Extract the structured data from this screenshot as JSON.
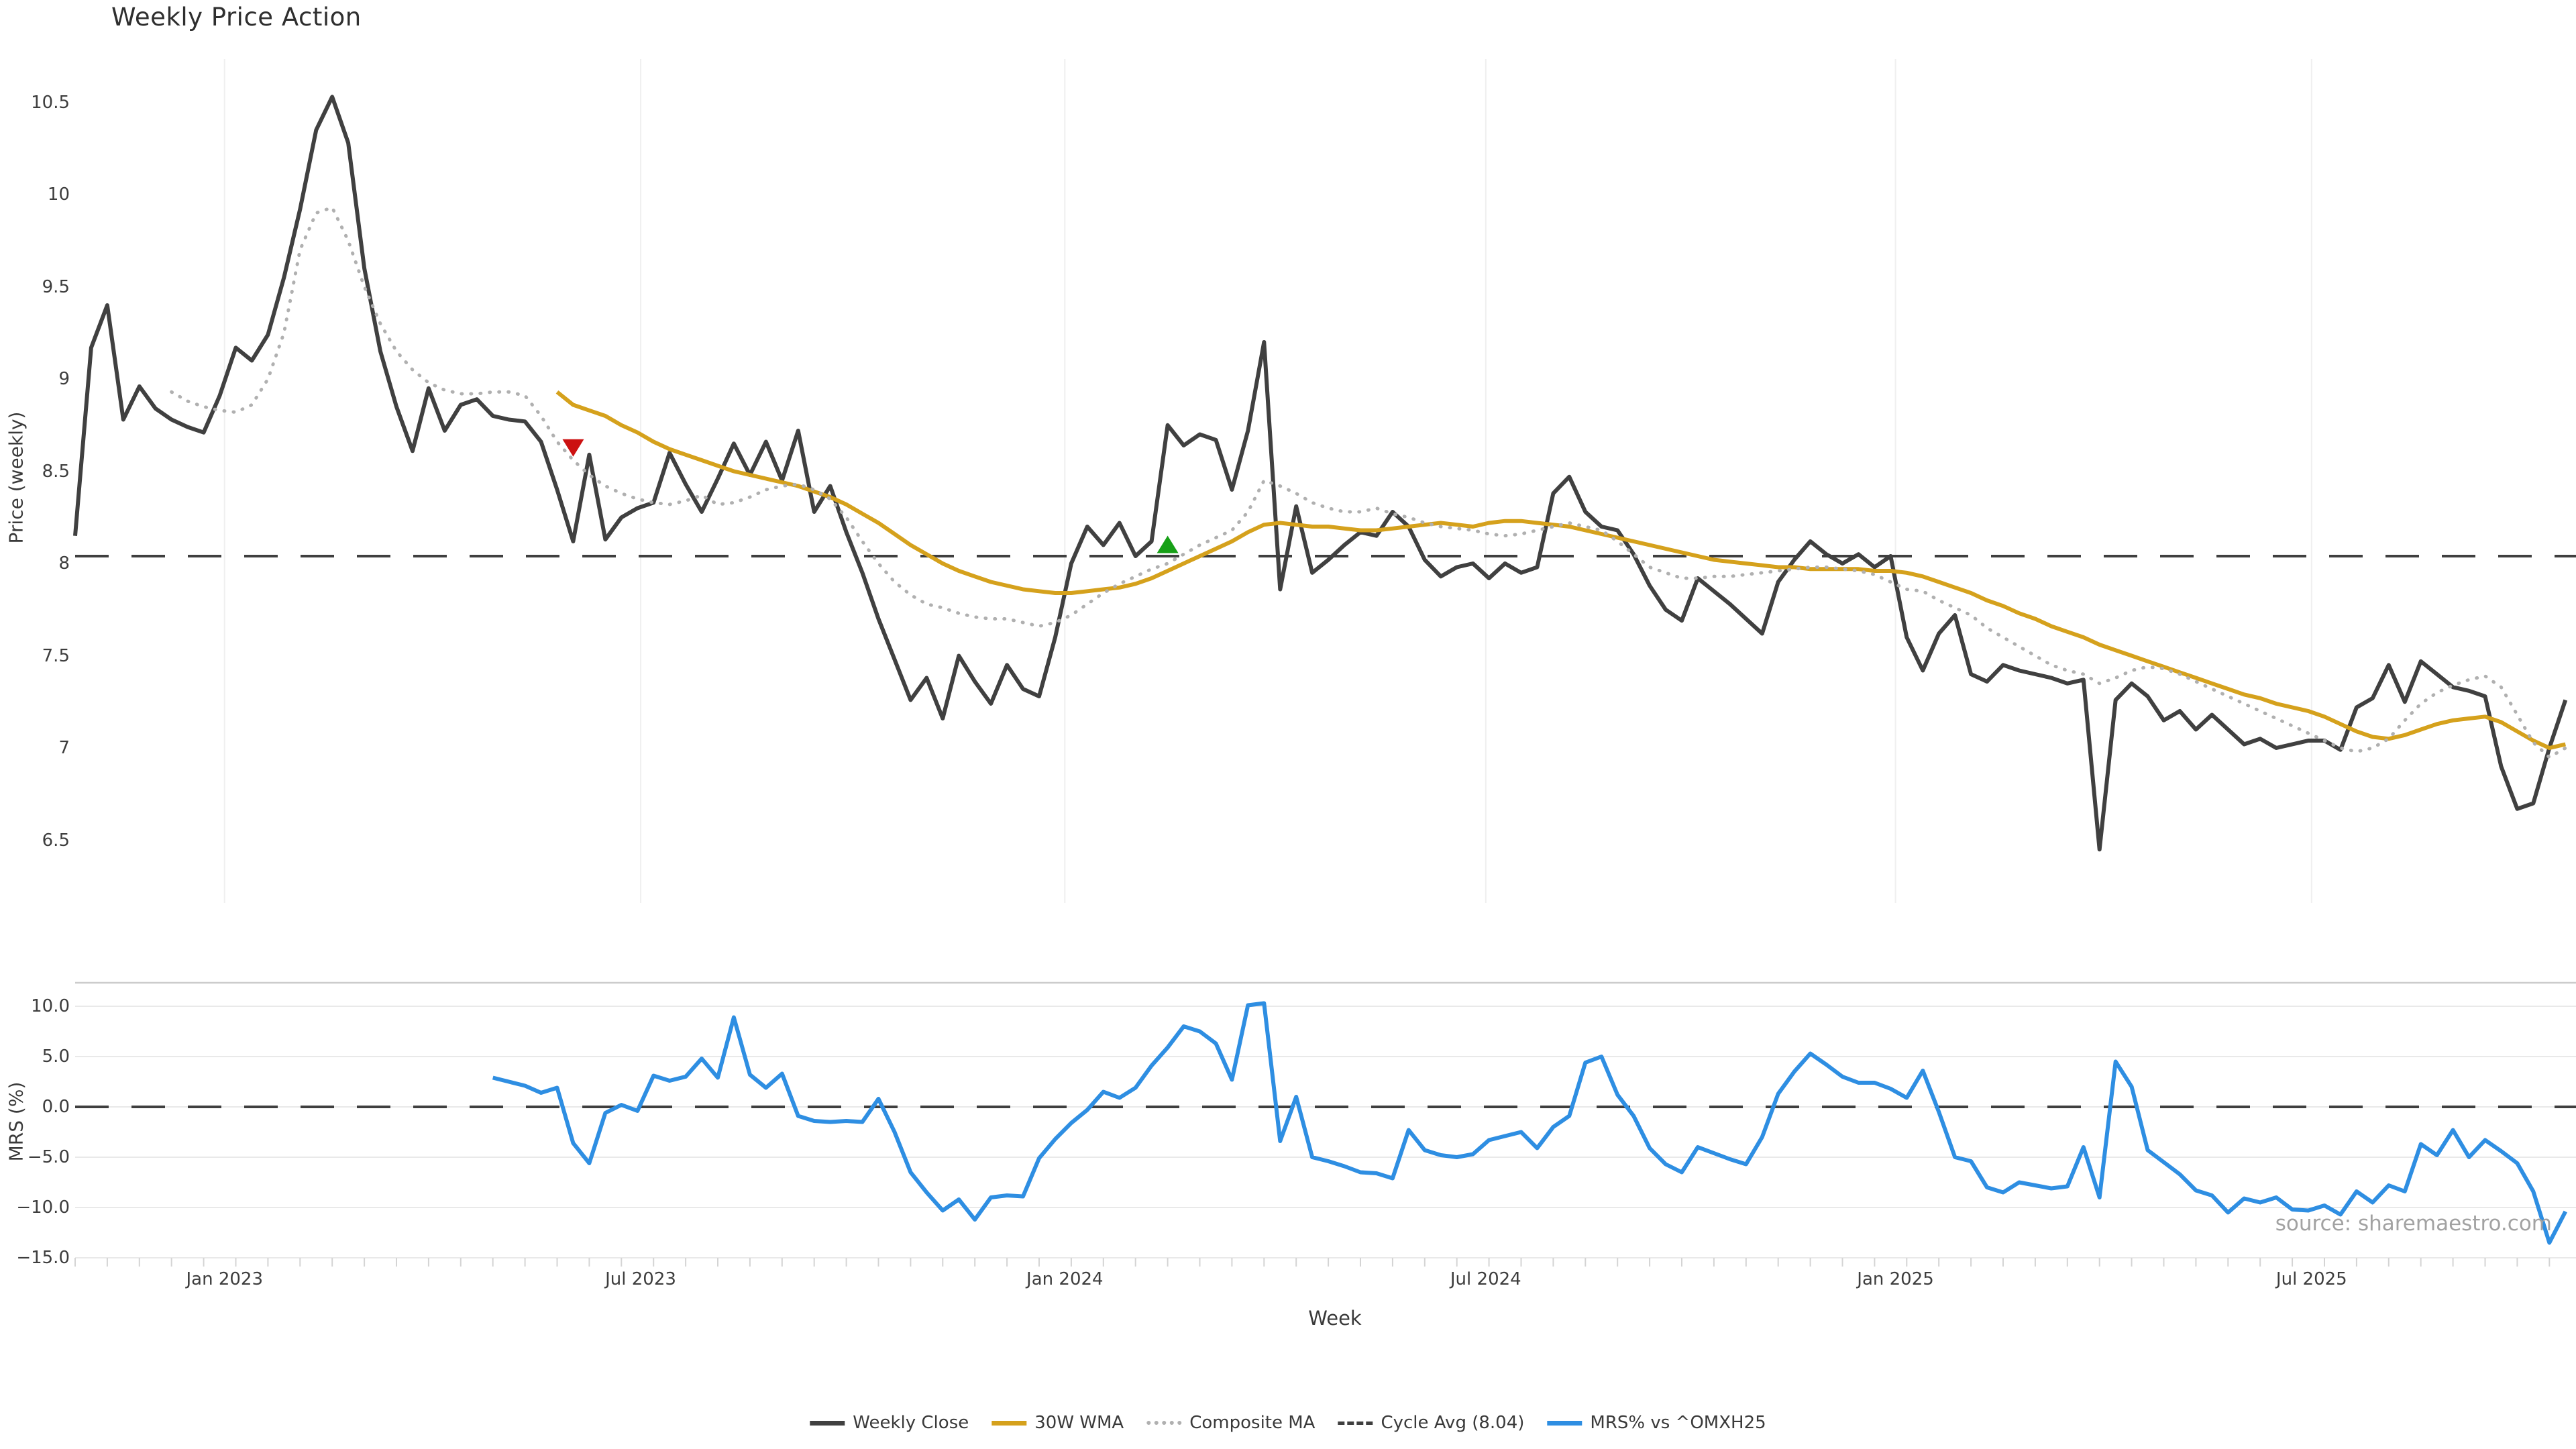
{
  "title": "Weekly Price Action",
  "xlabel": "Week",
  "watermark": "source: sharemaestro.com",
  "price_panel": {
    "ylabel": "Price (weekly)",
    "yticks": [
      "10.5",
      "10",
      "9.5",
      "9",
      "8.5",
      "8",
      "7.5",
      "7",
      "6.5"
    ],
    "ytick_values": [
      10.5,
      10,
      9.5,
      9,
      8.5,
      8,
      7.5,
      7,
      6.5
    ]
  },
  "mrs_panel": {
    "ylabel": "MRS (%)",
    "yticks": [
      "10.0",
      "5.0",
      "0.0",
      "−5.0",
      "−10.0",
      "−15.0"
    ],
    "ytick_values": [
      10,
      5,
      0,
      -5,
      -10,
      -15
    ]
  },
  "legend": [
    {
      "label": "Weekly Close",
      "swatch": "solid-dark"
    },
    {
      "label": "30W WMA",
      "swatch": "solid-gold"
    },
    {
      "label": "Composite MA",
      "swatch": "dotted-gray"
    },
    {
      "label": "Cycle Avg (8.04)",
      "swatch": "dashed-dark"
    },
    {
      "label": "MRS% vs ^OMXH25",
      "swatch": "solid-blue"
    }
  ],
  "colors": {
    "close": "#404040",
    "wma": "#d5a11c",
    "composite": "#b0b0b0",
    "cycle": "#3f3f3f",
    "mrs": "#2e8ee2",
    "grid_v": "#efefef",
    "grid_h": "#e9e9e9",
    "spine": "#cccccc",
    "minor_tick": "#d4d4d4",
    "marker_down": "#cc1111",
    "marker_up": "#17a017"
  },
  "chart_data": {
    "type": "line",
    "title": "Weekly Price Action",
    "x_unit": "weeks",
    "start_date": "2022-10-31",
    "frequency": "weekly",
    "n_weeks": 156,
    "xticks": [
      {
        "label": "Jan 2023",
        "week": 9.3
      },
      {
        "label": "Jul 2023",
        "week": 35.2
      },
      {
        "label": "Jan 2024",
        "week": 61.6
      },
      {
        "label": "Jul 2024",
        "week": 87.8
      },
      {
        "label": "Jan 2025",
        "week": 113.3
      },
      {
        "label": "Jul 2025",
        "week": 139.2
      }
    ],
    "price_ylim": [
      6.2,
      10.7
    ],
    "mrs_ylim": [
      -16,
      12.5
    ],
    "cycle_avg": 8.04,
    "mrs_zero": 0.0,
    "markers": [
      {
        "shape": "triangle-down",
        "week": 31,
        "price": 8.63,
        "color_key": "marker_down"
      },
      {
        "shape": "triangle-up",
        "week": 68,
        "price": 8.1,
        "color_key": "marker_up"
      }
    ],
    "series": [
      {
        "name": "Weekly Close",
        "panel": "price",
        "style": "solid",
        "color_key": "close",
        "start_week": 0,
        "values": [
          8.15,
          9.17,
          9.4,
          8.78,
          8.96,
          8.84,
          8.78,
          8.74,
          8.71,
          8.91,
          9.17,
          9.1,
          9.24,
          9.55,
          9.92,
          10.35,
          10.53,
          10.28,
          9.6,
          9.15,
          8.85,
          8.61,
          8.95,
          8.72,
          8.86,
          8.89,
          8.8,
          8.78,
          8.77,
          8.66,
          8.4,
          8.12,
          8.59,
          8.13,
          8.25,
          8.3,
          8.33,
          8.6,
          8.43,
          8.28,
          8.46,
          8.65,
          8.48,
          8.66,
          8.45,
          8.72,
          8.28,
          8.42,
          8.17,
          7.95,
          7.7,
          7.48,
          7.26,
          7.38,
          7.16,
          7.5,
          7.36,
          7.24,
          7.45,
          7.32,
          7.28,
          7.6,
          8.0,
          8.2,
          8.1,
          8.22,
          8.04,
          8.12,
          8.75,
          8.64,
          8.7,
          8.67,
          8.4,
          8.72,
          9.2,
          7.86,
          8.31,
          7.95,
          8.02,
          8.1,
          8.17,
          8.15,
          8.28,
          8.2,
          8.02,
          7.93,
          7.98,
          8.0,
          7.92,
          8.0,
          7.95,
          7.98,
          8.38,
          8.47,
          8.28,
          8.2,
          8.18,
          8.05,
          7.88,
          7.75,
          7.69,
          7.92,
          7.85,
          7.78,
          7.7,
          7.62,
          7.9,
          8.02,
          8.12,
          8.05,
          8.0,
          8.05,
          7.98,
          8.04,
          7.6,
          7.42,
          7.62,
          7.72,
          7.4,
          7.36,
          7.45,
          7.42,
          7.4,
          7.38,
          7.35,
          7.37,
          6.45,
          7.26,
          7.35,
          7.28,
          7.15,
          7.2,
          7.1,
          7.18,
          7.1,
          7.02,
          7.05,
          7.0,
          7.02,
          7.04,
          7.04,
          6.99,
          7.22,
          7.27,
          7.45,
          7.25,
          7.47,
          7.4,
          7.33,
          7.31,
          7.28,
          6.9,
          6.67,
          6.7,
          7.0,
          7.26
        ]
      },
      {
        "name": "30W WMA",
        "panel": "price",
        "style": "solid",
        "color_key": "wma",
        "start_week": 30,
        "values": [
          8.93,
          8.86,
          8.83,
          8.8,
          8.75,
          8.71,
          8.66,
          8.62,
          8.59,
          8.56,
          8.53,
          8.5,
          8.48,
          8.46,
          8.44,
          8.42,
          8.39,
          8.36,
          8.32,
          8.27,
          8.22,
          8.16,
          8.1,
          8.05,
          8.0,
          7.96,
          7.93,
          7.9,
          7.88,
          7.86,
          7.85,
          7.84,
          7.84,
          7.85,
          7.86,
          7.87,
          7.89,
          7.92,
          7.96,
          8.0,
          8.04,
          8.08,
          8.12,
          8.17,
          8.21,
          8.22,
          8.21,
          8.2,
          8.2,
          8.19,
          8.18,
          8.18,
          8.19,
          8.2,
          8.21,
          8.22,
          8.21,
          8.2,
          8.22,
          8.23,
          8.23,
          8.22,
          8.21,
          8.2,
          8.18,
          8.16,
          8.14,
          8.12,
          8.1,
          8.08,
          8.06,
          8.04,
          8.02,
          8.01,
          8.0,
          7.99,
          7.98,
          7.98,
          7.97,
          7.97,
          7.97,
          7.97,
          7.96,
          7.96,
          7.95,
          7.93,
          7.9,
          7.87,
          7.84,
          7.8,
          7.77,
          7.73,
          7.7,
          7.66,
          7.63,
          7.6,
          7.56,
          7.53,
          7.5,
          7.47,
          7.44,
          7.41,
          7.38,
          7.35,
          7.32,
          7.29,
          7.27,
          7.24,
          7.22,
          7.2,
          7.17,
          7.13,
          7.09,
          7.06,
          7.05,
          7.07,
          7.1,
          7.13,
          7.15,
          7.16,
          7.17,
          7.14,
          7.09,
          7.04,
          7.0,
          7.02
        ]
      },
      {
        "name": "Composite MA",
        "panel": "price",
        "style": "dotted",
        "color_key": "composite",
        "start_week": 6,
        "values": [
          8.93,
          8.88,
          8.85,
          8.83,
          8.82,
          8.86,
          9.0,
          9.25,
          9.7,
          9.9,
          9.93,
          9.75,
          9.5,
          9.3,
          9.15,
          9.05,
          8.98,
          8.94,
          8.92,
          8.92,
          8.93,
          8.93,
          8.91,
          8.8,
          8.66,
          8.56,
          8.48,
          8.42,
          8.38,
          8.35,
          8.33,
          8.32,
          8.34,
          8.37,
          8.32,
          8.33,
          8.36,
          8.4,
          8.42,
          8.43,
          8.4,
          8.35,
          8.25,
          8.12,
          8.0,
          7.9,
          7.83,
          7.78,
          7.76,
          7.73,
          7.71,
          7.7,
          7.7,
          7.68,
          7.66,
          7.68,
          7.72,
          7.78,
          7.84,
          7.89,
          7.93,
          7.97,
          8.0,
          8.05,
          8.1,
          8.14,
          8.18,
          8.28,
          8.45,
          8.42,
          8.38,
          8.33,
          8.3,
          8.28,
          8.28,
          8.3,
          8.27,
          8.25,
          8.22,
          8.2,
          8.19,
          8.18,
          8.16,
          8.15,
          8.16,
          8.18,
          8.2,
          8.22,
          8.2,
          8.18,
          8.12,
          8.05,
          7.98,
          7.95,
          7.92,
          7.92,
          7.93,
          7.93,
          7.94,
          7.95,
          7.96,
          7.97,
          7.98,
          7.98,
          7.97,
          7.96,
          7.94,
          7.9,
          7.86,
          7.85,
          7.8,
          7.76,
          7.72,
          7.65,
          7.6,
          7.55,
          7.5,
          7.45,
          7.42,
          7.4,
          7.35,
          7.38,
          7.42,
          7.44,
          7.43,
          7.4,
          7.36,
          7.32,
          7.28,
          7.24,
          7.2,
          7.16,
          7.12,
          7.08,
          7.04,
          7.0,
          6.98,
          7.0,
          7.05,
          7.15,
          7.24,
          7.3,
          7.34,
          7.37,
          7.39,
          7.33,
          7.18,
          7.03,
          6.95,
          7.0
        ]
      },
      {
        "name": "MRS% vs ^OMXH25",
        "panel": "mrs",
        "style": "solid",
        "color_key": "mrs",
        "start_week": 26,
        "values": [
          2.9,
          2.5,
          2.1,
          1.4,
          1.9,
          -3.6,
          -5.6,
          -0.6,
          0.2,
          -0.4,
          3.1,
          2.6,
          3.0,
          4.8,
          2.9,
          8.9,
          3.2,
          1.9,
          3.3,
          -0.9,
          -1.4,
          -1.5,
          -1.4,
          -1.5,
          0.8,
          -2.5,
          -6.5,
          -8.5,
          -10.3,
          -9.2,
          -11.2,
          -9.0,
          -8.8,
          -8.9,
          -5.1,
          -3.2,
          -1.6,
          -0.3,
          1.5,
          0.9,
          1.9,
          4.1,
          5.9,
          8.0,
          7.5,
          6.3,
          2.7,
          10.1,
          10.3,
          -3.4,
          1.0,
          -5.0,
          -5.4,
          -5.9,
          -6.5,
          -6.6,
          -7.1,
          -2.3,
          -4.3,
          -4.8,
          -5.0,
          -4.7,
          -3.3,
          -2.9,
          -2.5,
          -4.1,
          -2.0,
          -0.9,
          4.4,
          5.0,
          1.2,
          -0.9,
          -4.1,
          -5.7,
          -6.5,
          -4.0,
          -4.6,
          -5.2,
          -5.7,
          -3.0,
          1.3,
          3.5,
          5.3,
          4.2,
          3.0,
          2.4,
          2.4,
          1.8,
          0.9,
          3.6,
          -0.5,
          -5.0,
          -5.4,
          -8.0,
          -8.5,
          -7.5,
          -7.8,
          -8.1,
          -7.9,
          -4.0,
          -9.0,
          4.5,
          2.0,
          -4.3,
          -5.5,
          -6.7,
          -8.3,
          -8.8,
          -10.5,
          -9.1,
          -9.5,
          -9.0,
          -10.2,
          -10.3,
          -9.8,
          -10.7,
          -8.4,
          -9.5,
          -7.8,
          -8.4,
          -3.7,
          -4.8,
          -2.3,
          -5.0,
          -3.3,
          -4.4,
          -5.6,
          -8.4,
          -13.5,
          -10.4
        ]
      }
    ]
  }
}
